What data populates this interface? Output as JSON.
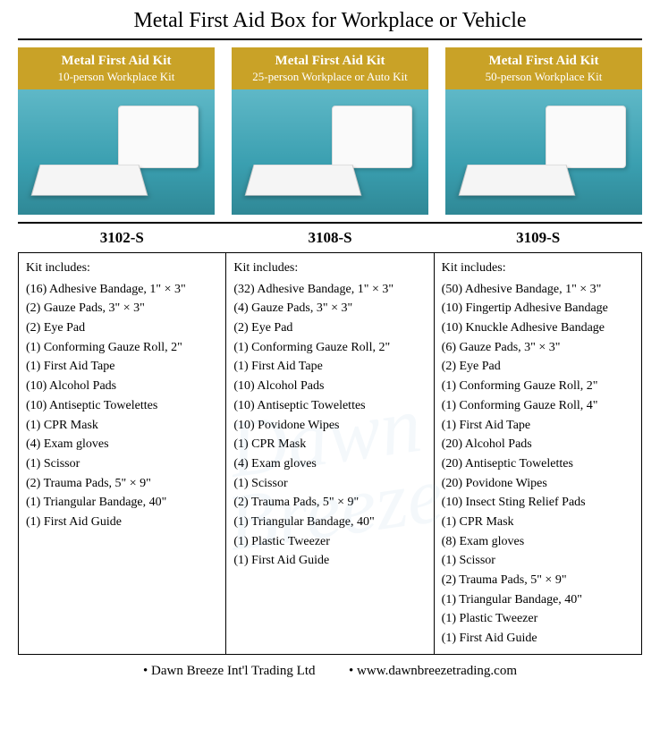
{
  "title": "Metal First Aid Box for Workplace or Vehicle",
  "products": [
    {
      "header_line1": "Metal First Aid Kit",
      "header_line2": "10-person Workplace Kit",
      "sku": "3102-S",
      "includes_label": "Kit includes:",
      "items": [
        "(16) Adhesive Bandage, 1\" × 3\"",
        "(2) Gauze Pads, 3\" × 3\"",
        "(2) Eye Pad",
        "(1) Conforming Gauze Roll, 2\"",
        "(1) First Aid Tape",
        "(10) Alcohol Pads",
        "(10) Antiseptic Towelettes",
        "(1) CPR Mask",
        "(4) Exam gloves",
        "(1) Scissor",
        "(2) Trauma Pads, 5\" × 9\"",
        "(1) Triangular Bandage, 40\"",
        "(1) First Aid Guide"
      ]
    },
    {
      "header_line1": "Metal First Aid Kit",
      "header_line2": "25-person Workplace or Auto Kit",
      "sku": "3108-S",
      "includes_label": "Kit includes:",
      "items": [
        "(32) Adhesive Bandage, 1\" × 3\"",
        "(4) Gauze Pads, 3\" × 3\"",
        "(2) Eye Pad",
        "(1) Conforming Gauze Roll, 2\"",
        "(1) First Aid Tape",
        "(10) Alcohol Pads",
        "(10) Antiseptic Towelettes",
        "(10) Povidone Wipes",
        "(1) CPR Mask",
        "(4) Exam gloves",
        "(1) Scissor",
        "(2) Trauma Pads, 5\" × 9\"",
        "(1) Triangular Bandage, 40\"",
        "(1) Plastic Tweezer",
        "(1) First Aid Guide"
      ]
    },
    {
      "header_line1": "Metal First Aid Kit",
      "header_line2": "50-person Workplace Kit",
      "sku": "3109-S",
      "includes_label": "Kit includes:",
      "items": [
        "(50) Adhesive Bandage, 1\" × 3\"",
        "(10) Fingertip Adhesive Bandage",
        "(10) Knuckle Adhesive Bandage",
        "(6) Gauze Pads, 3\" × 3\"",
        "(2) Eye Pad",
        "(1) Conforming Gauze Roll, 2\"",
        "(1) Conforming Gauze Roll, 4\"",
        "(1) First Aid Tape",
        "(20) Alcohol Pads",
        "(20) Antiseptic Towelettes",
        "(20) Povidone Wipes",
        "(10) Insect Sting Relief Pads",
        "(1) CPR Mask",
        "(8) Exam gloves",
        "(1) Scissor",
        "(2) Trauma Pads, 5\" × 9\"",
        "(1) Triangular Bandage, 40\"",
        "(1) Plastic Tweezer",
        "(1) First Aid Guide"
      ]
    }
  ],
  "footer": {
    "company": "Dawn Breeze Int'l Trading Ltd",
    "website": "www.dawnbreezetrading.com"
  },
  "colors": {
    "header_bg": "#c9a227",
    "header_text": "#ffffff",
    "photo_bg": "#3a9fb0",
    "border": "#000000",
    "text": "#000000"
  },
  "watermark": "Dawn\nBreeze"
}
